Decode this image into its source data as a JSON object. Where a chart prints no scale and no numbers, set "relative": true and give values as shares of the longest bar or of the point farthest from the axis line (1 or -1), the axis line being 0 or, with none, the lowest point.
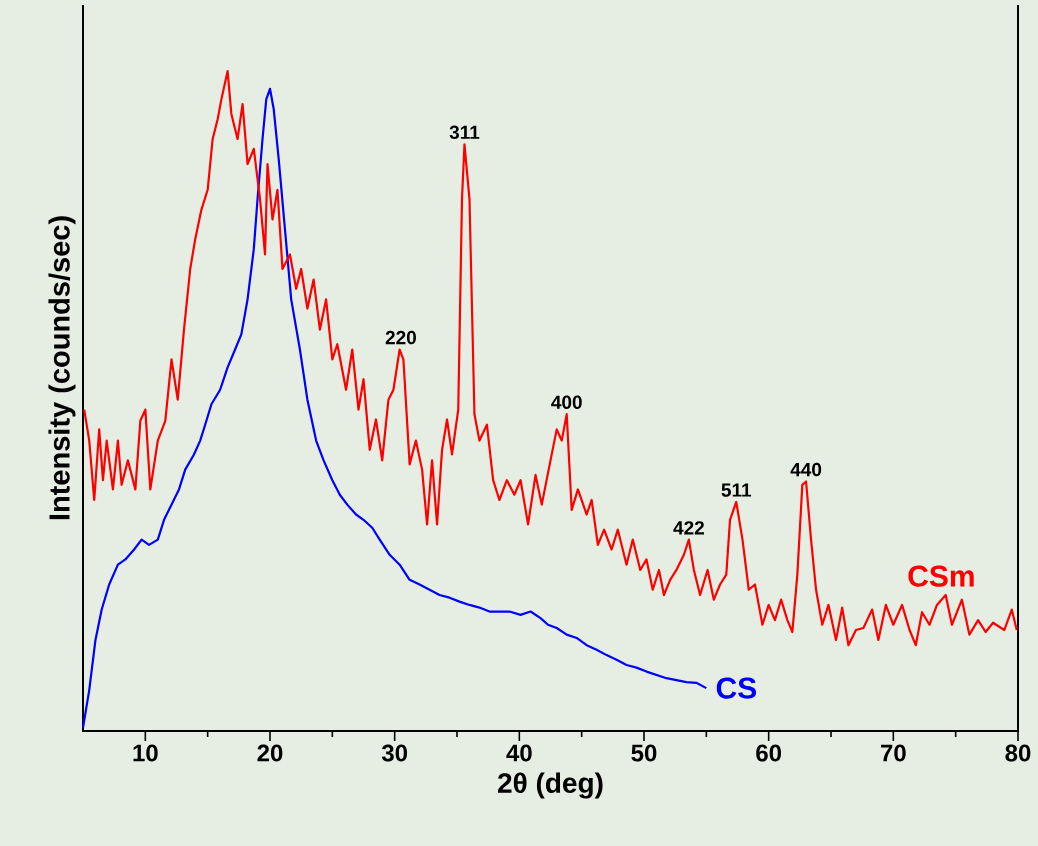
{
  "chart_data": {
    "type": "line",
    "relative": true,
    "xlabel": "2θ (deg)",
    "ylabel": "Intensity (counds/sec)",
    "xlim": [
      5,
      80
    ],
    "xticks": [
      10,
      20,
      30,
      40,
      50,
      60,
      70,
      80
    ],
    "series": [
      {
        "name": "CS",
        "color": "#0000ff",
        "x": [
          5.0,
          5.5,
          6.0,
          6.5,
          7.1,
          7.8,
          8.4,
          9.1,
          9.7,
          10.3,
          11.0,
          11.5,
          12.1,
          12.7,
          13.2,
          13.9,
          14.4,
          14.8,
          15.3,
          16.0,
          16.6,
          17.2,
          17.7,
          18.2,
          18.7,
          19.0,
          19.4,
          19.7,
          20.0,
          20.3,
          20.7,
          21.2,
          21.7,
          22.4,
          23.0,
          23.7,
          24.3,
          25.0,
          25.6,
          26.2,
          26.9,
          27.5,
          28.2,
          28.8,
          29.6,
          30.4,
          31.2,
          32.0,
          32.8,
          33.6,
          34.4,
          35.2,
          36.0,
          36.8,
          37.6,
          38.4,
          39.2,
          40.1,
          40.9,
          41.7,
          42.3,
          43.0,
          43.8,
          44.6,
          45.4,
          46.2,
          47.0,
          47.8,
          48.6,
          49.4,
          50.2,
          51.0,
          51.8,
          52.6,
          53.4,
          54.2,
          55.0
        ],
        "values": [
          0.005,
          0.062,
          0.138,
          0.184,
          0.222,
          0.252,
          0.26,
          0.275,
          0.29,
          0.282,
          0.29,
          0.32,
          0.343,
          0.366,
          0.396,
          0.419,
          0.44,
          0.464,
          0.495,
          0.517,
          0.551,
          0.578,
          0.601,
          0.654,
          0.73,
          0.806,
          0.897,
          0.957,
          0.973,
          0.942,
          0.866,
          0.76,
          0.654,
          0.578,
          0.502,
          0.44,
          0.41,
          0.38,
          0.358,
          0.343,
          0.328,
          0.32,
          0.308,
          0.29,
          0.267,
          0.252,
          0.229,
          0.222,
          0.214,
          0.206,
          0.202,
          0.196,
          0.191,
          0.187,
          0.181,
          0.181,
          0.181,
          0.176,
          0.181,
          0.171,
          0.161,
          0.156,
          0.146,
          0.141,
          0.13,
          0.123,
          0.115,
          0.108,
          0.1,
          0.096,
          0.09,
          0.085,
          0.08,
          0.077,
          0.074,
          0.073,
          0.065
        ]
      },
      {
        "name": "CSm",
        "color": "#ff0000",
        "x": [
          5.1,
          5.5,
          5.9,
          6.3,
          6.6,
          6.9,
          7.4,
          7.8,
          8.1,
          8.6,
          9.2,
          9.6,
          10.0,
          10.4,
          11.0,
          11.6,
          12.1,
          12.6,
          13.1,
          13.6,
          14.0,
          14.5,
          15.0,
          15.4,
          15.8,
          16.1,
          16.6,
          16.9,
          17.4,
          17.8,
          18.2,
          18.7,
          19.2,
          19.6,
          19.8,
          20.2,
          20.6,
          21.0,
          21.6,
          22.1,
          22.5,
          23.0,
          23.5,
          24.0,
          24.5,
          25.0,
          25.4,
          26.1,
          26.6,
          27.1,
          27.5,
          28.0,
          28.5,
          29.0,
          29.5,
          29.9,
          30.4,
          30.7,
          31.2,
          31.7,
          32.2,
          32.6,
          33.0,
          33.4,
          33.8,
          34.2,
          34.6,
          35.1,
          35.4,
          35.6,
          36.0,
          36.4,
          36.8,
          37.4,
          37.9,
          38.4,
          39.0,
          39.6,
          40.1,
          40.7,
          41.3,
          41.8,
          42.5,
          43.0,
          43.4,
          43.8,
          44.2,
          44.7,
          45.4,
          45.8,
          46.3,
          46.8,
          47.4,
          47.9,
          48.6,
          49.1,
          49.7,
          50.2,
          50.7,
          51.2,
          51.6,
          52.1,
          52.6,
          53.2,
          53.6,
          54.0,
          54.5,
          55.1,
          55.6,
          56.1,
          56.6,
          56.9,
          57.4,
          57.9,
          58.4,
          58.9,
          59.5,
          60.0,
          60.5,
          61.0,
          61.5,
          61.9,
          62.3,
          62.7,
          63.0,
          63.4,
          63.8,
          64.3,
          64.8,
          65.4,
          65.9,
          66.4,
          67.0,
          67.6,
          68.3,
          68.8,
          69.4,
          70.0,
          70.7,
          71.3,
          71.8,
          72.3,
          72.9,
          73.5,
          74.2,
          74.7,
          75.5,
          76.1,
          76.8,
          77.4,
          78.0,
          78.9,
          79.5,
          79.9
        ],
        "values": [
          0.487,
          0.44,
          0.35,
          0.457,
          0.38,
          0.44,
          0.366,
          0.44,
          0.373,
          0.41,
          0.366,
          0.47,
          0.487,
          0.366,
          0.44,
          0.47,
          0.563,
          0.502,
          0.608,
          0.7,
          0.745,
          0.79,
          0.82,
          0.897,
          0.927,
          0.957,
          1.0,
          0.935,
          0.897,
          0.95,
          0.859,
          0.882,
          0.806,
          0.722,
          0.859,
          0.775,
          0.82,
          0.7,
          0.722,
          0.67,
          0.7,
          0.64,
          0.684,
          0.608,
          0.654,
          0.563,
          0.586,
          0.517,
          0.578,
          0.487,
          0.533,
          0.426,
          0.472,
          0.41,
          0.502,
          0.517,
          0.578,
          0.563,
          0.404,
          0.44,
          0.396,
          0.313,
          0.41,
          0.313,
          0.426,
          0.472,
          0.419,
          0.487,
          0.806,
          0.889,
          0.806,
          0.48,
          0.44,
          0.464,
          0.38,
          0.35,
          0.38,
          0.358,
          0.38,
          0.313,
          0.388,
          0.343,
          0.41,
          0.457,
          0.44,
          0.48,
          0.335,
          0.366,
          0.328,
          0.35,
          0.282,
          0.305,
          0.275,
          0.305,
          0.252,
          0.29,
          0.244,
          0.26,
          0.214,
          0.244,
          0.206,
          0.229,
          0.244,
          0.267,
          0.29,
          0.244,
          0.206,
          0.244,
          0.199,
          0.222,
          0.237,
          0.32,
          0.347,
          0.29,
          0.214,
          0.222,
          0.161,
          0.191,
          0.168,
          0.199,
          0.168,
          0.15,
          0.237,
          0.373,
          0.378,
          0.29,
          0.214,
          0.161,
          0.191,
          0.138,
          0.187,
          0.13,
          0.153,
          0.156,
          0.184,
          0.138,
          0.191,
          0.161,
          0.191,
          0.153,
          0.13,
          0.18,
          0.161,
          0.191,
          0.206,
          0.161,
          0.199,
          0.146,
          0.168,
          0.15,
          0.164,
          0.153,
          0.184,
          0.153
        ]
      }
    ],
    "annotations": [
      {
        "text": "220",
        "x": 30.5,
        "y": 0.578
      },
      {
        "text": "311",
        "x": 35.6,
        "y": 0.889
      },
      {
        "text": "400",
        "x": 43.8,
        "y": 0.48
      },
      {
        "text": "422",
        "x": 53.6,
        "y": 0.29
      },
      {
        "text": "511",
        "x": 57.4,
        "y": 0.347
      },
      {
        "text": "440",
        "x": 63.0,
        "y": 0.378
      }
    ]
  }
}
